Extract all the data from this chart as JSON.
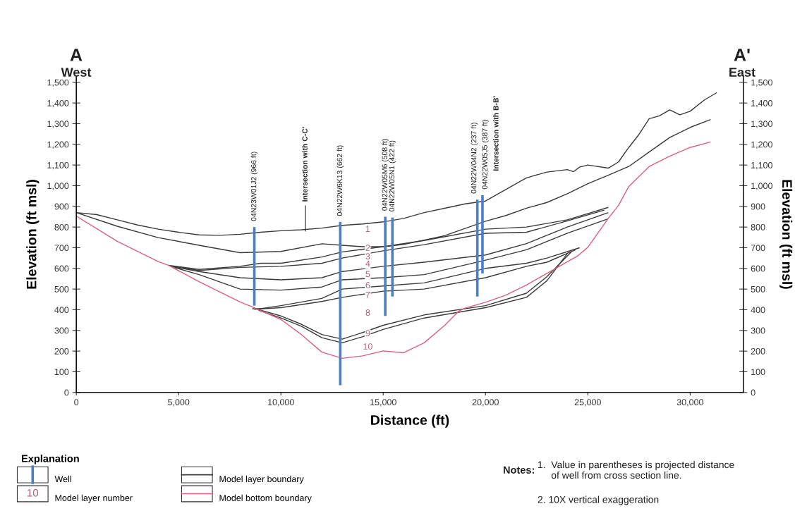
{
  "chart_data": {
    "type": "line",
    "xlabel": "Distance (ft)",
    "ylabel": "Elevation (ft msl)",
    "y2label": "Elevation (ft msl)",
    "legend_title": "Explanation",
    "xlim": [
      0,
      32600
    ],
    "ylim": [
      0,
      1530
    ],
    "y2lim": [
      0,
      1530
    ],
    "xticks": [
      0,
      {
        "value": 5000,
        "label": "5,000"
      },
      {
        "value": 10000,
        "label": "10,000"
      },
      {
        "value": 15000,
        "label": "15,000"
      },
      {
        "value": 20000,
        "label": "20,000"
      },
      {
        "value": 25000,
        "label": "25,000"
      },
      {
        "value": 30000,
        "label": "30,000"
      }
    ],
    "yticks": [
      0,
      100,
      200,
      300,
      400,
      500,
      600,
      700,
      800,
      900,
      {
        "value": 1000,
        "label": "1,000"
      },
      {
        "value": 1100,
        "label": "1,100"
      },
      {
        "value": 1200,
        "label": "1,200"
      },
      {
        "value": 1300,
        "label": "1,300"
      },
      {
        "value": 1400,
        "label": "1,400"
      },
      {
        "value": 1500,
        "label": "1,500"
      }
    ],
    "y2ticks": [
      0,
      100,
      200,
      300,
      400,
      500,
      600,
      700,
      800,
      900,
      {
        "value": 1000,
        "label": "1,000"
      },
      {
        "value": 1100,
        "label": "1,100"
      },
      {
        "value": 1200,
        "label": "1,200"
      },
      {
        "value": 1300,
        "label": "1,300"
      },
      {
        "value": 1400,
        "label": "1,400"
      },
      {
        "value": 1500,
        "label": "1,500"
      }
    ],
    "grid": false,
    "legend": "bottom left",
    "marker": "none",
    "line_style": "solid",
    "series": [
      {
        "name": "Model layer boundary",
        "color": "#3a3a3a",
        "x": [
          0,
          1000,
          2000,
          3000,
          4000,
          5000,
          6000,
          7000,
          8000,
          9000,
          10000,
          11000,
          12000,
          13000,
          14000,
          15000,
          16000,
          17000,
          18000,
          19000,
          20000,
          22000,
          23000,
          24000,
          24300,
          24600,
          25000,
          26000,
          26500,
          27000,
          27500,
          28000,
          28500,
          29000,
          29500,
          30000,
          30700,
          31300
        ],
        "values": [
          870,
          860,
          835,
          810,
          790,
          775,
          762,
          760,
          765,
          775,
          782,
          787,
          795,
          808,
          815,
          825,
          842,
          870,
          891,
          912,
          926,
          1038,
          1066,
          1078,
          1068,
          1090,
          1100,
          1085,
          1115,
          1185,
          1248,
          1324,
          1338,
          1367,
          1343,
          1360,
          1415,
          1450
        ]
      },
      {
        "color": "#3a3a3a",
        "x": [
          0,
          2000,
          4000,
          6000,
          8000,
          10000,
          12000,
          13000,
          14000,
          15000,
          16000,
          17000,
          18000,
          19000,
          20000,
          21000,
          22000,
          23000,
          24000,
          25000,
          26000,
          27000,
          28000,
          29000,
          30000,
          31000
        ],
        "values": [
          870,
          804,
          749,
          712,
          676,
          682,
          719,
          712,
          705,
          705,
          716,
          737,
          758,
          793,
          828,
          856,
          891,
          919,
          961,
          1010,
          1051,
          1093,
          1163,
          1233,
          1282,
          1320
        ]
      },
      {
        "color": "#3a3a3a",
        "x": [
          4500,
          6000,
          8000,
          9000,
          10000,
          12000,
          13000,
          15000,
          17000,
          20000,
          22000,
          24000,
          26000
        ],
        "values": [
          615,
          595,
          610,
          625,
          625,
          655,
          680,
          705,
          735,
          790,
          800,
          835,
          895
        ]
      },
      {
        "color": "#3a3a3a",
        "x": [
          4600,
          6000,
          8000,
          10000,
          12000,
          13000,
          15000,
          17000,
          20000,
          22000,
          24000,
          25800
        ],
        "values": [
          612,
          590,
          605,
          610,
          625,
          650,
          685,
          715,
          770,
          775,
          830,
          882
        ]
      },
      {
        "color": "#3a3a3a",
        "x": [
          4700,
          6000,
          8000,
          10000,
          12000,
          13000,
          15000,
          17000,
          20000,
          22000,
          24000,
          26000
        ],
        "values": [
          608,
          585,
          555,
          545,
          555,
          585,
          610,
          630,
          665,
          720,
          800,
          870
        ]
      },
      {
        "color": "#3a3a3a",
        "x": [
          4800,
          6000,
          8000,
          10000,
          12000,
          13000,
          15000,
          17000,
          20000,
          22000,
          24000,
          26000
        ],
        "values": [
          604,
          570,
          500,
          495,
          510,
          545,
          555,
          570,
          640,
          690,
          770,
          840
        ]
      },
      {
        "color": "#3a3a3a",
        "x": [
          8600,
          9000,
          10000,
          12000,
          13000,
          15000,
          17000,
          20000,
          22000,
          23000,
          24600
        ],
        "values": [
          405,
          405,
          420,
          455,
          500,
          515,
          530,
          600,
          625,
          650,
          700
        ]
      },
      {
        "color": "#3a3a3a",
        "x": [
          8700,
          10000,
          12000,
          13000,
          15000,
          17000,
          20000,
          22000,
          23000,
          24400
        ],
        "values": [
          402,
          410,
          440,
          460,
          490,
          500,
          555,
          610,
          630,
          690
        ]
      },
      {
        "color": "#3a3a3a",
        "x": [
          8800,
          10000,
          11000,
          12000,
          13000,
          14000,
          15000,
          17000,
          20000,
          22000,
          23000,
          24200
        ],
        "values": [
          404,
          370,
          330,
          280,
          258,
          290,
          325,
          375,
          420,
          480,
          560,
          680
        ]
      },
      {
        "color": "#3a3a3a",
        "x": [
          8900,
          10000,
          11000,
          12000,
          13000,
          14000,
          15000,
          17000,
          20000,
          22000,
          23000,
          24000
        ],
        "values": [
          398,
          360,
          320,
          265,
          240,
          270,
          305,
          360,
          410,
          460,
          540,
          672
        ]
      },
      {
        "name": "Model bottom boundary",
        "color": "#d9607e",
        "x": [
          0,
          2000,
          4000,
          4500,
          6000,
          8000,
          8600,
          10000,
          11000,
          12000,
          13000,
          14000,
          15000,
          16000,
          17000,
          18000,
          18700,
          19000,
          20000,
          21000,
          22000,
          23000,
          24000,
          24500,
          25000,
          26000,
          26500,
          27000,
          28000,
          29000,
          30000,
          31000
        ],
        "values": [
          853,
          731,
          633,
          615,
          536,
          438,
          414,
          353,
          280,
          195,
          165,
          177,
          201,
          192,
          240,
          324,
          394,
          408,
          436,
          471,
          520,
          576,
          632,
          660,
          702,
          842,
          905,
          996,
          1093,
          1143,
          1185,
          1212
        ]
      },
      {
        "name": "Well",
        "color": "#4a7fc4",
        "x": [
          8700,
          8700
        ],
        "values": [
          800,
          420
        ]
      },
      {
        "color": "#4a7fc4",
        "x": [
          12900,
          12900
        ],
        "values": [
          825,
          35
        ]
      },
      {
        "color": "#4a7fc4",
        "x": [
          15100,
          15100
        ],
        "values": [
          850,
          370
        ]
      },
      {
        "color": "#4a7fc4",
        "x": [
          15450,
          15450
        ],
        "values": [
          846,
          464
        ]
      },
      {
        "color": "#4a7fc4",
        "x": [
          19600,
          19600
        ],
        "values": [
          933,
          464
        ]
      },
      {
        "color": "#4a7fc4",
        "x": [
          19850,
          19850
        ],
        "values": [
          954,
          576
        ]
      }
    ],
    "annotations": [
      {
        "text": "04N23W01J2 (966 ft)",
        "x": 8700,
        "y": 800
      },
      {
        "text": "04N22W6K13 (662 ft)",
        "x": 12900,
        "y": 825
      },
      {
        "text": "04N22W05M6 (508 ft)",
        "x": 15100,
        "y": 850
      },
      {
        "text": "04N22W05N1 (422 ft)",
        "x": 15450,
        "y": 846
      },
      {
        "text": "04N22W04N2 (237 ft)",
        "x": 19600,
        "y": 933
      },
      {
        "text": "04N22W05J5 (387 ft)",
        "x": 19850,
        "y": 954
      },
      {
        "text": "Intersection with C-C'",
        "x": 11200,
        "y": 780
      },
      "A",
      "West",
      "A'",
      "East",
      "10",
      "Model layer number",
      "Notes:",
      "1.  Value in parentheses is projected distance\n     of well from cross section line.",
      "2. 10X vertical exaggeration",
      "1",
      "2",
      "3",
      "4",
      "5",
      "6",
      "7",
      "8",
      "9",
      "10",
      "Intersection with B-B'"
    ]
  }
}
